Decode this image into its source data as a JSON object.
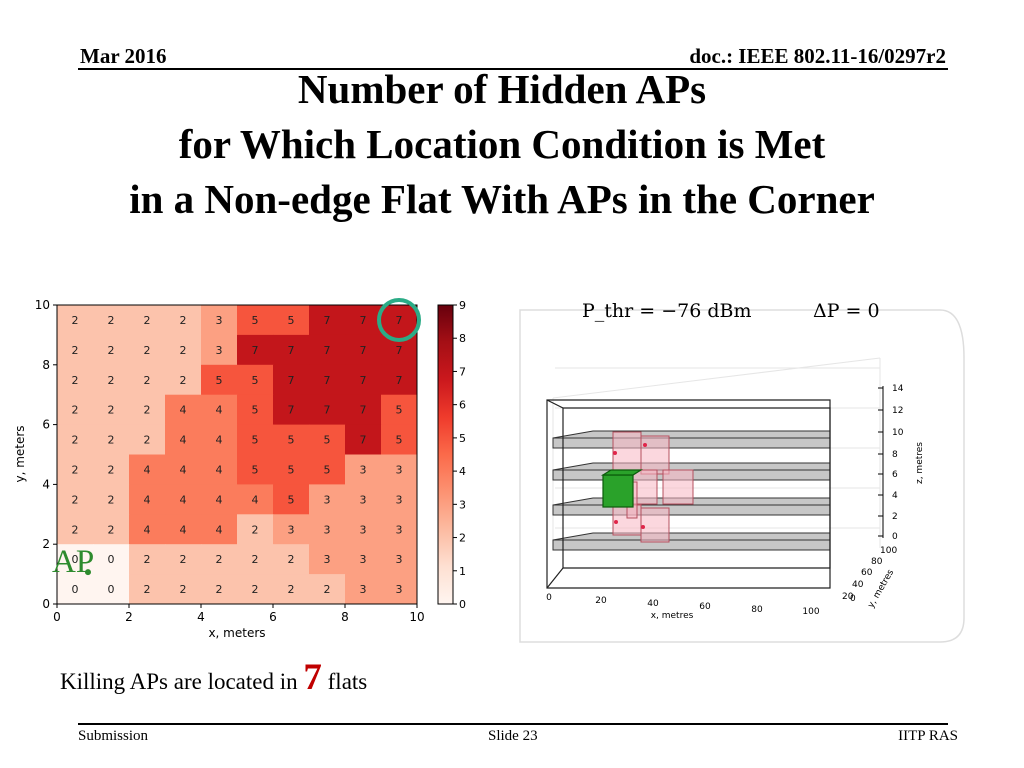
{
  "header": {
    "date": "Mar 2016",
    "doc": "doc.: IEEE 802.11-16/0297r2"
  },
  "title": [
    "Number of Hidden APs",
    "for Which Location Condition is Met",
    "in a Non-edge Flat With APs in the Corner"
  ],
  "equation": {
    "p_thr": "P_thr = −76 dBm",
    "delta_p": "ΔP = 0"
  },
  "annotations": {
    "ap_label": "AP",
    "killing_prefix": "Killing APs are located in",
    "killing_count": "7",
    "killing_suffix": "flats"
  },
  "footer": {
    "left": "Submission",
    "slide": "Slide 23",
    "right": "IITP RAS"
  },
  "colors": {
    "highlight_circle": "#2bab86",
    "ap_label": "#2e8b2e",
    "killing_count": "#c00000"
  },
  "chart_data": [
    {
      "type": "heatmap",
      "xlabel": "x, meters",
      "ylabel": "y, meters",
      "xlim": [
        0,
        10
      ],
      "ylim": [
        0,
        10
      ],
      "xticks": [
        "0",
        "2",
        "4",
        "6",
        "8",
        "10"
      ],
      "yticks": [
        "0",
        "2",
        "4",
        "6",
        "8",
        "10"
      ],
      "colorbar": {
        "range": [
          0,
          9
        ],
        "ticks": [
          "0",
          "1",
          "2",
          "3",
          "4",
          "5",
          "6",
          "7",
          "8",
          "9"
        ],
        "colormap": "Reds"
      },
      "rows_top_to_bottom": [
        [
          2,
          2,
          2,
          2,
          3,
          5,
          5,
          7,
          7,
          7
        ],
        [
          2,
          2,
          2,
          2,
          3,
          7,
          7,
          7,
          7,
          7
        ],
        [
          2,
          2,
          2,
          2,
          5,
          5,
          7,
          7,
          7,
          7
        ],
        [
          2,
          2,
          2,
          4,
          4,
          5,
          7,
          7,
          7,
          5
        ],
        [
          2,
          2,
          2,
          4,
          4,
          5,
          5,
          5,
          7,
          5
        ],
        [
          2,
          2,
          4,
          4,
          4,
          5,
          5,
          5,
          3,
          3
        ],
        [
          2,
          2,
          4,
          4,
          4,
          4,
          5,
          3,
          3,
          3
        ],
        [
          2,
          2,
          4,
          4,
          4,
          2,
          3,
          3,
          3,
          3
        ],
        [
          0,
          0,
          2,
          2,
          2,
          2,
          2,
          3,
          3,
          3
        ],
        [
          0,
          0,
          2,
          2,
          2,
          2,
          2,
          2,
          3,
          3
        ]
      ],
      "highlighted_cell": {
        "x": 9.5,
        "y": 9.5
      },
      "ap_position": {
        "x": 1,
        "y": 1
      }
    },
    {
      "type": "3d-scatter",
      "xlabel": "x, metres",
      "ylabel": "y, metres",
      "zlabel": "z, metres",
      "xticks": [
        "0",
        "20",
        "40",
        "60",
        "80",
        "100"
      ],
      "yticks": [
        "0",
        "20",
        "40",
        "60",
        "80",
        "100"
      ],
      "zticks": [
        "0",
        "2",
        "4",
        "6",
        "8",
        "10",
        "12",
        "14"
      ]
    }
  ]
}
